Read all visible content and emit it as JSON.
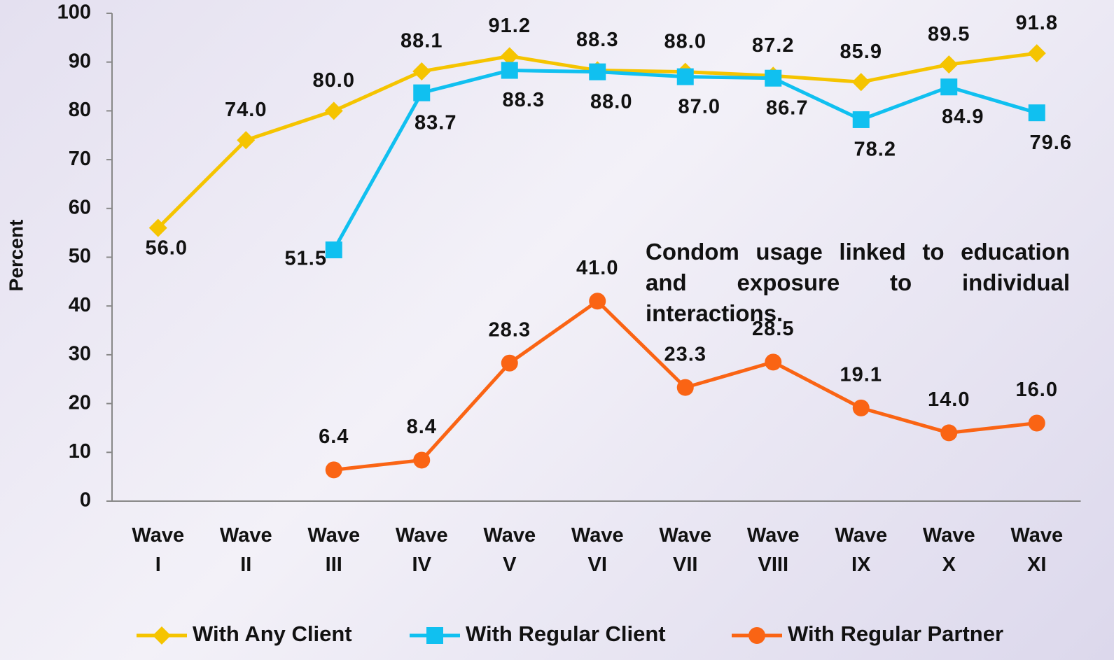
{
  "chart_data": {
    "type": "line",
    "y_label": "Percent",
    "annotation": "Condom usage linked to education and exposure to individual interactions.",
    "categories": [
      "Wave I",
      "Wave II",
      "Wave III",
      "Wave IV",
      "Wave V",
      "Wave VI",
      "Wave VII",
      "Wave VIII",
      "Wave IX",
      "Wave X",
      "Wave XI"
    ],
    "series": [
      {
        "name": "With Any Client",
        "color": "#f5c400",
        "marker": "diamond",
        "values": [
          56.0,
          74.0,
          80.0,
          88.1,
          91.2,
          88.3,
          88.0,
          87.2,
          85.9,
          89.5,
          91.8
        ],
        "value_labels": [
          "56.0",
          "74.0",
          "80.0",
          "88.1",
          "91.2",
          "88.3",
          "88.0",
          "87.2",
          "85.9",
          "89.5",
          "91.8"
        ]
      },
      {
        "name": "With Regular Client",
        "color": "#10c0f0",
        "marker": "square",
        "values": [
          null,
          null,
          51.5,
          83.7,
          88.3,
          88.0,
          87.0,
          86.7,
          78.2,
          84.9,
          79.6
        ],
        "value_labels": [
          null,
          null,
          "51.5",
          "83.7",
          "88.3",
          "88.0",
          "87.0",
          "86.7",
          "78.2",
          "84.9",
          "79.6"
        ]
      },
      {
        "name": "With Regular Partner",
        "color": "#fa6414",
        "marker": "circle",
        "values": [
          null,
          null,
          6.4,
          8.4,
          28.3,
          41.0,
          23.3,
          28.5,
          19.1,
          14.0,
          16.0
        ],
        "value_labels": [
          null,
          null,
          "6.4",
          "8.4",
          "28.3",
          "41.0",
          "23.3",
          "28.5",
          "19.1",
          "14.0",
          "16.0"
        ]
      }
    ],
    "ylim": [
      0,
      100
    ],
    "yticks": [
      0,
      10,
      20,
      30,
      40,
      50,
      60,
      70,
      80,
      90,
      100
    ],
    "grid": false,
    "legend": "bottom"
  }
}
